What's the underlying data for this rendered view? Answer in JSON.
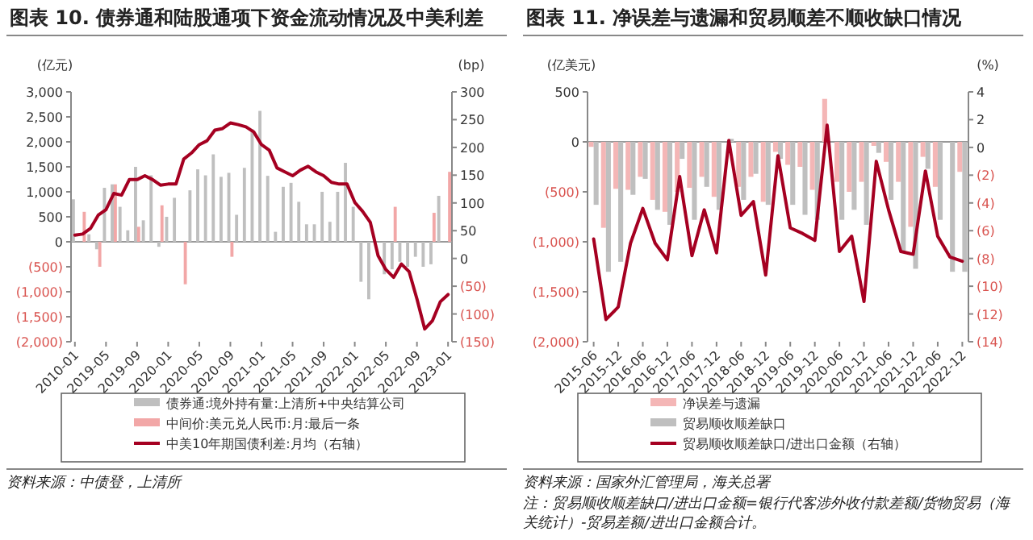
{
  "chart_data": [
    {
      "type": "bar",
      "title": "图表 10. 债券通和陆股通项下资金流动情况及中美利差",
      "ylabel": "(亿元)",
      "y2label": "(bp)",
      "categories": [
        "2010-01",
        null,
        null,
        null,
        "2019-05",
        null,
        null,
        null,
        "2019-09",
        null,
        null,
        null,
        "2020-01",
        null,
        null,
        null,
        "2020-05",
        null,
        null,
        null,
        "2020-09",
        null,
        null,
        null,
        "2021-01",
        null,
        null,
        null,
        "2021-05",
        null,
        null,
        null,
        "2021-09",
        null,
        null,
        null,
        "2022-01",
        null,
        null,
        null,
        "2022-05",
        null,
        null,
        null,
        "2022-09",
        null,
        null,
        null,
        "2023-01"
      ],
      "series": [
        {
          "name": "债券通:境外持有量:上清所+中央结算公司",
          "color": "#bfbfbf",
          "values": [
            850,
            0,
            150,
            -150,
            1080,
            1150,
            700,
            230,
            1500,
            430,
            1330,
            -100,
            500,
            880,
            0,
            1030,
            1450,
            1330,
            1750,
            1300,
            1380,
            540,
            1480,
            2250,
            2620,
            1320,
            200,
            1100,
            1180,
            800,
            350,
            350,
            1000,
            400,
            1000,
            1580,
            700,
            -800,
            -1150,
            null,
            -650,
            -550,
            -400,
            -500,
            -300,
            -500,
            -450,
            920,
            0
          ]
        },
        {
          "name": "中间价:美元兑人民币:月:最后一条",
          "color": "#f2a7a7",
          "values": [
            null,
            600,
            null,
            -500,
            null,
            1150,
            null,
            null,
            300,
            null,
            null,
            730,
            null,
            null,
            -850,
            null,
            null,
            null,
            null,
            null,
            -300,
            null,
            null,
            null,
            null,
            null,
            null,
            null,
            null,
            null,
            null,
            null,
            null,
            null,
            null,
            null,
            null,
            null,
            null,
            null,
            null,
            700,
            null,
            null,
            null,
            null,
            580,
            null,
            1400
          ]
        },
        {
          "name": "中美10年期国债利差:月均（右轴）",
          "color": "#a50021",
          "type": "line",
          "axis": "y2",
          "values": [
            42,
            44,
            54,
            78,
            88,
            117,
            114,
            142,
            142,
            149,
            142,
            132,
            134,
            134,
            179,
            190,
            205,
            212,
            231,
            234,
            244,
            241,
            237,
            228,
            205,
            195,
            163,
            156,
            149,
            159,
            166,
            156,
            149,
            137,
            134,
            134,
            101,
            85,
            65,
            5,
            -20,
            -34,
            -10,
            -24,
            -73,
            -127,
            -112,
            -78,
            -65
          ]
        }
      ],
      "ylim": [
        -2000,
        3000
      ],
      "yticks": [
        {
          "value": -2000,
          "label": "(2,000)"
        },
        {
          "value": -1500,
          "label": "(1,500)"
        },
        {
          "value": -1000,
          "label": "(1,000)"
        },
        {
          "value": -500,
          "label": "(500)"
        },
        {
          "value": 0,
          "label": "0"
        },
        {
          "value": 500,
          "label": "500"
        },
        {
          "value": 1000,
          "label": "1,000"
        },
        {
          "value": 1500,
          "label": "1,500"
        },
        {
          "value": 2000,
          "label": "2,000"
        },
        {
          "value": 2500,
          "label": "2,500"
        },
        {
          "value": 3000,
          "label": "3,000"
        }
      ],
      "y2lim": [
        -150,
        300
      ],
      "y2ticks": [
        {
          "value": -150,
          "label": "(150)"
        },
        {
          "value": -100,
          "label": "(100)"
        },
        {
          "value": -50,
          "label": "(50)"
        },
        0,
        50,
        100,
        150,
        200,
        250,
        300
      ],
      "legend": "bottom",
      "annotations": [
        "资料来源：中债登，上清所"
      ]
    },
    {
      "type": "bar",
      "title": "图表 11. 净误差与遗漏和贸易顺差不顺收缺口情况",
      "ylabel": "(亿美元)",
      "y2label": "(%)",
      "categories": [
        "2015-06",
        null,
        "2015-12",
        null,
        "2016-06",
        null,
        "2016-12",
        null,
        "2017-06",
        null,
        "2017-12",
        null,
        "2018-06",
        null,
        "2018-12",
        null,
        "2019-06",
        null,
        "2019-12",
        null,
        "2020-06",
        null,
        "2020-12",
        null,
        "2021-06",
        null,
        "2021-12",
        null,
        "2022-06",
        null,
        "2022-12"
      ],
      "series": [
        {
          "name": "净误差与遗漏",
          "color": "#f4b6b6",
          "values": [
            -50,
            -860,
            -470,
            -480,
            -350,
            -580,
            -700,
            -500,
            -460,
            -350,
            -550,
            0,
            -450,
            -350,
            -600,
            -100,
            -230,
            -250,
            -480,
            430,
            -400,
            -500,
            -400,
            -40,
            -200,
            -400,
            -850,
            -150,
            -450,
            null,
            -300
          ]
        },
        {
          "name": "贸易顺收顺差缺口",
          "color": "#bfbfbf",
          "values": [
            -630,
            -1300,
            -1200,
            -530,
            -370,
            -680,
            -830,
            -170,
            -780,
            -450,
            -680,
            30,
            -580,
            -320,
            -630,
            -170,
            -630,
            -730,
            -780,
            null,
            -780,
            -680,
            -830,
            -110,
            -580,
            -1090,
            -1270,
            -270,
            -780,
            -1300,
            -1300
          ]
        },
        {
          "name": "贸易顺收顺差缺口/进出口金额（右轴）",
          "color": "#a50021",
          "type": "line",
          "axis": "y2",
          "values": [
            -6.6,
            -12.4,
            -11.5,
            -6.9,
            -4.4,
            -6.9,
            -8.1,
            -2.1,
            -7.8,
            -4.5,
            -7.6,
            0.5,
            -4.9,
            -3.9,
            -9.2,
            -0.6,
            -5.8,
            -6.2,
            -6.7,
            1.6,
            -7.5,
            -6.4,
            -11.1,
            -1.0,
            -4.5,
            -7.5,
            -7.7,
            -1.7,
            -6.4,
            -7.9,
            -8.2
          ]
        }
      ],
      "ylim": [
        -2000,
        500
      ],
      "yticks": [
        {
          "value": -2000,
          "label": "(2,000)"
        },
        {
          "value": -1500,
          "label": "(1,500)"
        },
        {
          "value": -1000,
          "label": "(1,000)"
        },
        {
          "value": -500,
          "label": "(500)"
        },
        0,
        500
      ],
      "y2lim": [
        -14,
        4
      ],
      "y2ticks": [
        {
          "value": -14,
          "label": "(14)"
        },
        {
          "value": -12,
          "label": "(12)"
        },
        {
          "value": -10,
          "label": "(10)"
        },
        {
          "value": -8,
          "label": "(8)"
        },
        {
          "value": -6,
          "label": "(6)"
        },
        {
          "value": -4,
          "label": "(4)"
        },
        {
          "value": -2,
          "label": "(2)"
        },
        0,
        2,
        4
      ],
      "legend": "bottom",
      "annotations": [
        "资料来源：国家外汇管理局，海关总署",
        "注：贸易顺收顺差缺口/进出口金额=银行代客涉外收付款差额/货物贸易（海关统计）-贸易差额/进出口金额合计。"
      ]
    }
  ]
}
